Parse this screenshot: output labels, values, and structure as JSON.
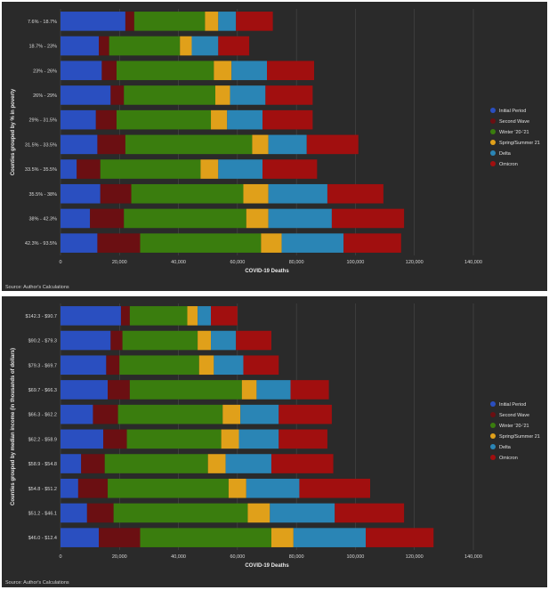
{
  "chart_data": [
    {
      "type": "bar",
      "orientation": "horizontal",
      "stacked": true,
      "title": "",
      "xlabel": "COVID-19 Deaths",
      "ylabel": "Counties grouped by % in poverty",
      "xlim": [
        0,
        140000
      ],
      "xticks": [
        "0",
        "20,000",
        "40,000",
        "60,000",
        "80,000",
        "100,000",
        "120,000",
        "140,000"
      ],
      "legend_position": "right",
      "grid": true,
      "source": "Source: Author's Calculations",
      "categories": [
        "7.6% - 18.7%",
        "18.7% - 23%",
        "23% - 26%",
        "26% - 29%",
        "29% - 31.5%",
        "31.5% - 33.5%",
        "33.5% - 35.5%",
        "35.5% - 38%",
        "38% - 42.3%",
        "42.3% - 93.5%"
      ],
      "series": [
        {
          "name": "Initial Period",
          "color": "#2a4fc0",
          "values": [
            22000,
            13000,
            14000,
            17000,
            12000,
            12500,
            5500,
            13500,
            10000,
            12500
          ]
        },
        {
          "name": "Second Wave",
          "color": "#6b0f12",
          "values": [
            3000,
            3500,
            5000,
            4500,
            7000,
            9500,
            8000,
            10500,
            11500,
            14500
          ]
        },
        {
          "name": "Winter '20-'21",
          "color": "#3a7d0e",
          "values": [
            24000,
            24000,
            33000,
            31000,
            32000,
            43000,
            34000,
            38000,
            41500,
            41000
          ]
        },
        {
          "name": "Spring/Summer 21",
          "color": "#e0a01a",
          "values": [
            4500,
            4000,
            6000,
            5000,
            5500,
            5500,
            6000,
            8500,
            7500,
            7000
          ]
        },
        {
          "name": "Delta",
          "color": "#2a85b5",
          "values": [
            6000,
            9000,
            12000,
            12000,
            12000,
            13000,
            15000,
            20000,
            21500,
            21000
          ]
        },
        {
          "name": "Omicron",
          "color": "#a10f0f",
          "values": [
            12500,
            10500,
            16000,
            16000,
            17000,
            17500,
            18500,
            19000,
            24500,
            19500
          ]
        }
      ]
    },
    {
      "type": "bar",
      "orientation": "horizontal",
      "stacked": true,
      "title": "",
      "xlabel": "COVID-19 Deaths",
      "ylabel": "Counties grouped by median income (in thousands of dollars)",
      "xlim": [
        0,
        140000
      ],
      "xticks": [
        "0",
        "20,000",
        "40,000",
        "60,000",
        "80,000",
        "100,000",
        "120,000",
        "140,000"
      ],
      "legend_position": "right",
      "grid": true,
      "source": "Source: Author's Calculations",
      "categories": [
        "$142.3 - $90.7",
        "$90.2 - $79.3",
        "$79.3 - $69.7",
        "$69.7 - $66.3",
        "$66.3 - $62.2",
        "$62.2 - $58.9",
        "$58.9 - $54.8",
        "$54.8 - $51.2",
        "$51.2 - $46.1",
        "$46.0 - $12.4"
      ],
      "series": [
        {
          "name": "Initial Period",
          "color": "#2a4fc0",
          "values": [
            20500,
            17000,
            15500,
            16000,
            11000,
            14500,
            7000,
            6000,
            9000,
            13000
          ]
        },
        {
          "name": "Second Wave",
          "color": "#6b0f12",
          "values": [
            3000,
            4000,
            4500,
            7500,
            8500,
            8000,
            8000,
            10000,
            9000,
            14000
          ]
        },
        {
          "name": "Winter '20-'21",
          "color": "#3a7d0e",
          "values": [
            19500,
            25500,
            27000,
            38000,
            35500,
            32000,
            35000,
            41000,
            45500,
            44500
          ]
        },
        {
          "name": "Spring/Summer 21",
          "color": "#e0a01a",
          "values": [
            3500,
            4500,
            5000,
            5000,
            6000,
            6000,
            6000,
            6000,
            7500,
            7500
          ]
        },
        {
          "name": "Delta",
          "color": "#2a85b5",
          "values": [
            4500,
            8500,
            10000,
            11500,
            13000,
            13500,
            15500,
            18000,
            22000,
            24500
          ]
        },
        {
          "name": "Omicron",
          "color": "#a10f0f",
          "values": [
            9000,
            12000,
            12000,
            13000,
            18000,
            16500,
            21000,
            24000,
            23500,
            23000
          ]
        }
      ]
    }
  ]
}
